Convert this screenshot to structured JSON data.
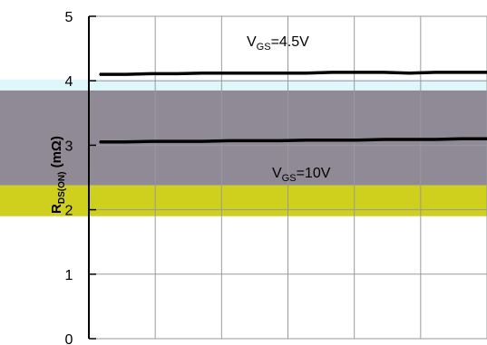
{
  "chart_data": {
    "type": "line",
    "title": "",
    "xlabel": "",
    "ylabel": {
      "main": "R",
      "sub": "DS(ON)",
      "unit": " (mΩ)"
    },
    "ylim": [
      0,
      5
    ],
    "yticks": [
      "0",
      "1",
      "2",
      "3",
      "4",
      "5"
    ],
    "x_gridlines": 6,
    "grid": true,
    "series": [
      {
        "label_main": "V",
        "label_sub": "GS",
        "label_value": "=4.5V",
        "values": [
          4.1,
          4.1,
          4.11,
          4.11,
          4.12,
          4.12,
          4.12,
          4.12,
          4.12,
          4.13,
          4.13,
          4.13,
          4.12,
          4.13,
          4.13,
          4.13
        ],
        "color": "#000000"
      },
      {
        "label_main": "V",
        "label_sub": "GS",
        "label_value": "=10V",
        "values": [
          3.05,
          3.05,
          3.06,
          3.06,
          3.06,
          3.07,
          3.07,
          3.07,
          3.08,
          3.08,
          3.08,
          3.09,
          3.09,
          3.09,
          3.1,
          3.1
        ],
        "color": "#000000"
      }
    ],
    "highlight_bands": [
      {
        "color": "#dff7fa"
      },
      {
        "color": "#8f8a96"
      },
      {
        "color": "#cfcf1e"
      }
    ]
  }
}
